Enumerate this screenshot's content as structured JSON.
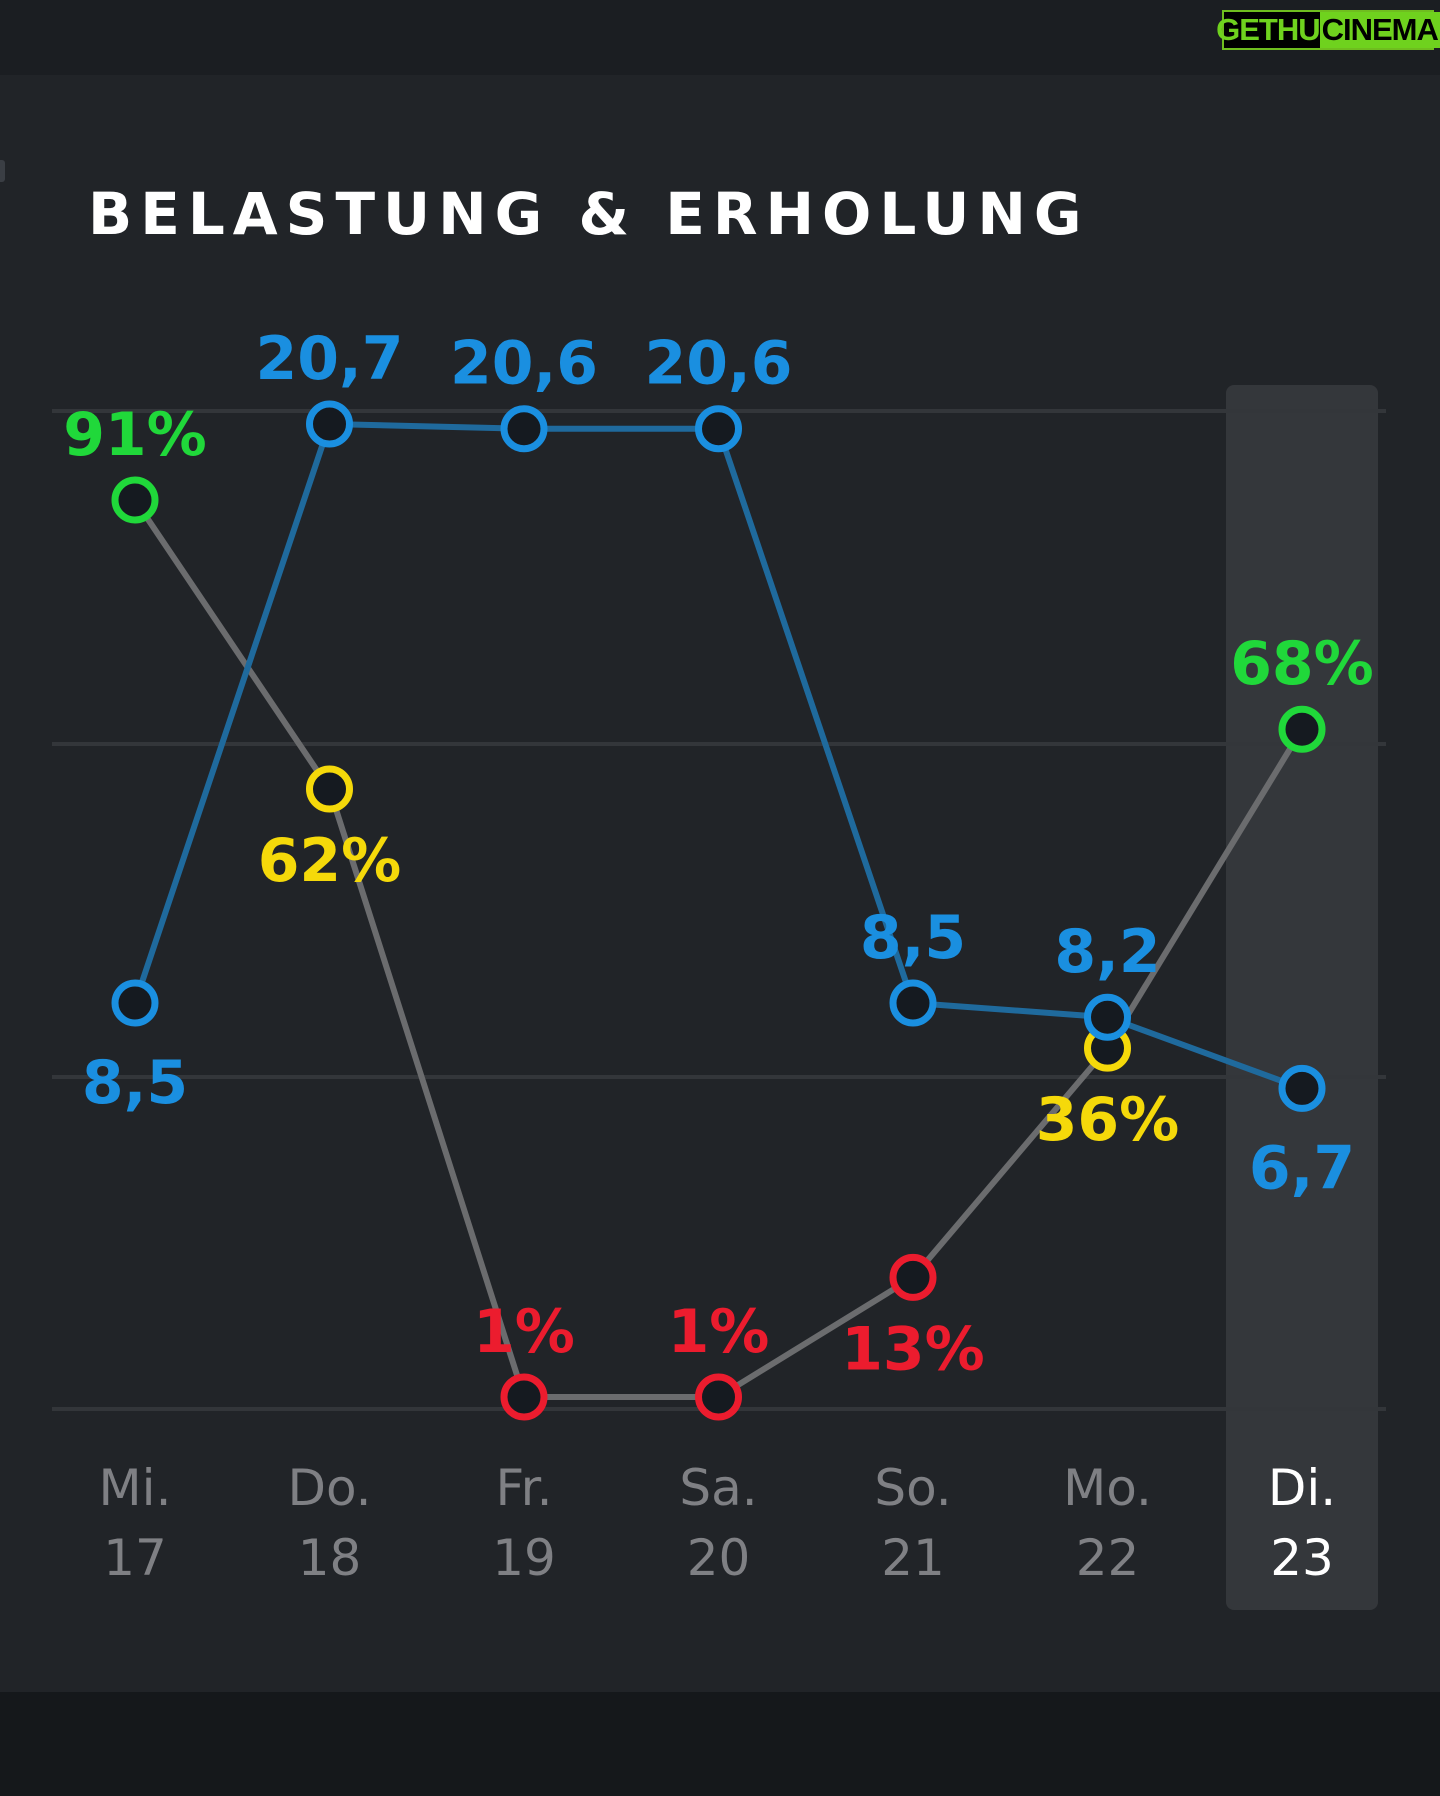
{
  "watermark": {
    "part1": "GETHU",
    "part2": "CINEMA"
  },
  "chart_data": {
    "type": "line",
    "title": "BELASTUNG & ERHOLUNG",
    "categories": [
      {
        "day": "Mi.",
        "date": "17"
      },
      {
        "day": "Do.",
        "date": "18"
      },
      {
        "day": "Fr.",
        "date": "19"
      },
      {
        "day": "Sa.",
        "date": "20"
      },
      {
        "day": "So.",
        "date": "21"
      },
      {
        "day": "Mo.",
        "date": "22"
      },
      {
        "day": "Di.",
        "date": "23"
      }
    ],
    "highlighted_category": 6,
    "strain": {
      "color": "#1a8fe0",
      "values": [
        8.5,
        20.7,
        20.6,
        20.6,
        8.5,
        8.2,
        6.7
      ],
      "labels": [
        "8,5",
        "20,7",
        "20,6",
        "20,6",
        "8,5",
        "8,2",
        "6,7"
      ],
      "label_side": [
        "below",
        "above",
        "above",
        "above",
        "above",
        "above",
        "below"
      ],
      "ylim": [
        0,
        21
      ]
    },
    "recovery": {
      "values": [
        91,
        62,
        1,
        1,
        13,
        36,
        68
      ],
      "labels": [
        "91%",
        "62%",
        "1%",
        "1%",
        "13%",
        "36%",
        "68%"
      ],
      "label_side": [
        "above",
        "below",
        "above",
        "above",
        "below",
        "below",
        "above"
      ],
      "ylim": [
        0,
        100
      ],
      "zone_colors": {
        "green": "#20d83a",
        "yellow": "#f5d90a",
        "red": "#ec1c2e"
      },
      "zones": [
        "green",
        "yellow",
        "red",
        "red",
        "red",
        "yellow",
        "green"
      ]
    },
    "grid": true,
    "colors": {
      "recovery_line": "#6b6c6e",
      "strain_line": "#1f6a9d",
      "gridline": "#33363a",
      "highlight_bg": "#34373b",
      "axis_text": "#7f8084",
      "axis_text_highlight": "#ffffff",
      "marker_fill": "#151a20"
    }
  }
}
